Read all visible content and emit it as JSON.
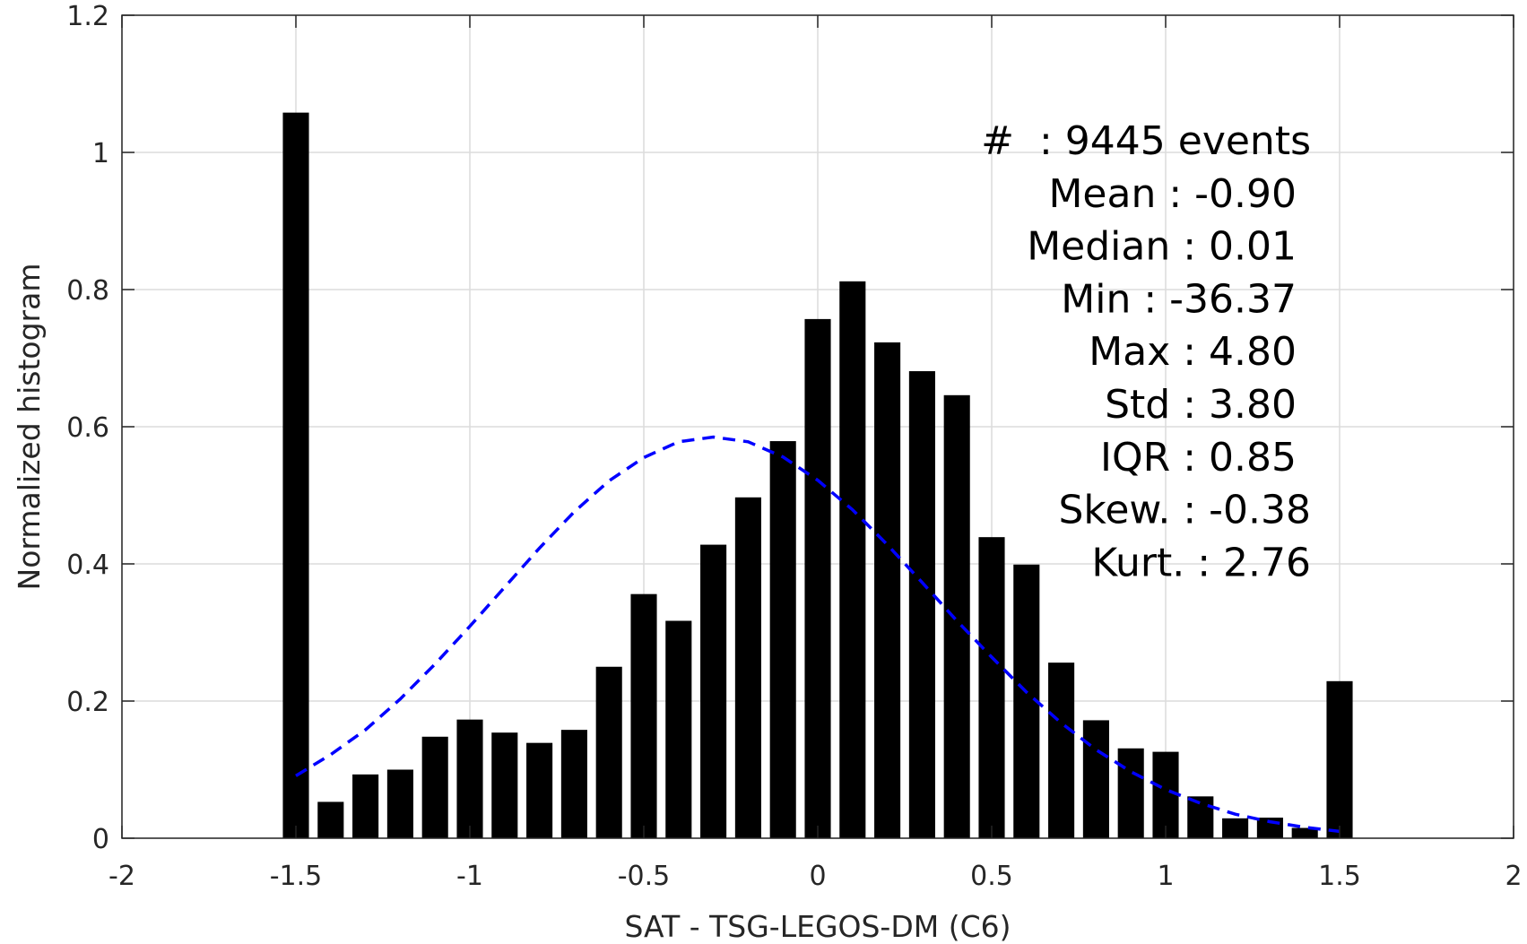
{
  "chart_data": {
    "type": "bar",
    "xlabel": "SAT - TSG-LEGOS-DM (C6)",
    "ylabel": "Normalized histogram",
    "xlim": [
      -2,
      2
    ],
    "ylim": [
      0,
      1.2
    ],
    "grid": true,
    "xticks": [
      "-2",
      "-1.5",
      "-1",
      "-0.5",
      "0",
      "0.5",
      "1",
      "1.5",
      "2"
    ],
    "yticks": [
      "0",
      "0.2",
      "0.4",
      "0.6",
      "0.8",
      "1",
      "1.2"
    ],
    "bar_color": "#000000",
    "fit_color": "#0000ff",
    "x": [
      -1.5,
      -1.4,
      -1.3,
      -1.2,
      -1.1,
      -1.0,
      -0.9,
      -0.8,
      -0.7,
      -0.6,
      -0.5,
      -0.4,
      -0.3,
      -0.2,
      -0.1,
      0.0,
      0.1,
      0.2,
      0.3,
      0.4,
      0.5,
      0.6,
      0.7,
      0.8,
      0.9,
      1.0,
      1.1,
      1.2,
      1.3,
      1.4,
      1.5
    ],
    "values": [
      1.058,
      0.053,
      0.093,
      0.1,
      0.148,
      0.173,
      0.154,
      0.139,
      0.158,
      0.25,
      0.356,
      0.317,
      0.428,
      0.497,
      0.579,
      0.757,
      0.812,
      0.723,
      0.681,
      0.646,
      0.439,
      0.399,
      0.256,
      0.172,
      0.131,
      0.126,
      0.061,
      0.029,
      0.03,
      0.015,
      0.229
    ],
    "fit_curve": {
      "style": "dashed",
      "x": [
        -1.5,
        -1.4,
        -1.3,
        -1.2,
        -1.1,
        -1.0,
        -0.9,
        -0.8,
        -0.7,
        -0.6,
        -0.5,
        -0.4,
        -0.3,
        -0.2,
        -0.1,
        0.0,
        0.1,
        0.2,
        0.3,
        0.4,
        0.5,
        0.6,
        0.7,
        0.8,
        0.9,
        1.0,
        1.1,
        1.2,
        1.3,
        1.4,
        1.5
      ],
      "y": [
        0.091,
        0.122,
        0.158,
        0.203,
        0.254,
        0.309,
        0.366,
        0.423,
        0.476,
        0.521,
        0.555,
        0.578,
        0.585,
        0.578,
        0.556,
        0.522,
        0.479,
        0.428,
        0.373,
        0.317,
        0.264,
        0.213,
        0.168,
        0.129,
        0.097,
        0.071,
        0.051,
        0.035,
        0.024,
        0.016,
        0.01
      ]
    },
    "stats": [
      "#  : 9445 events",
      "Mean : -0.90",
      "Median : 0.01",
      "Min : -36.37",
      "Max : 4.80",
      "Std : 3.80",
      "IQR : 0.85",
      "Skew. : -0.38",
      "Kurt. : 2.76"
    ]
  }
}
